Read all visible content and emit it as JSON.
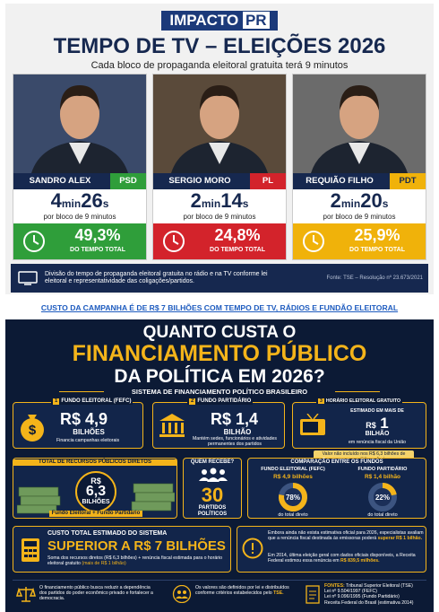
{
  "header": {
    "brand": "IMPACTO",
    "brand_suffix": "PR",
    "title": "TEMPO DE TV – ELEIÇÕES 2026",
    "subtitle": "Cada bloco de propaganda eleitoral gratuita terá 9 minutos"
  },
  "candidates": [
    {
      "name": "SANDRO ALEX",
      "party": "PSD",
      "minutes": "4",
      "min_unit": "min",
      "seconds": "26",
      "sec_unit": "s",
      "per_block": "por bloco de 9 minutos",
      "share": "49,3%",
      "share_caption": "DO TEMPO TOTAL",
      "color": "#2f9e3a"
    },
    {
      "name": "SERGIO MORO",
      "party": "PL",
      "minutes": "2",
      "min_unit": "min",
      "seconds": "14",
      "sec_unit": "s",
      "per_block": "por bloco de 9 minutos",
      "share": "24,8%",
      "share_caption": "DO TEMPO TOTAL",
      "color": "#d3232b"
    },
    {
      "name": "REQUIÃO FILHO",
      "party": "PDT",
      "minutes": "2",
      "min_unit": "min",
      "seconds": "20",
      "sec_unit": "s",
      "per_block": "por bloco de 9 minutos",
      "share": "25,9%",
      "share_caption": "DO TEMPO TOTAL",
      "color": "#f0b20a"
    }
  ],
  "footer": {
    "note": "Divisão do tempo de propaganda eleitoral gratuita no rádio e na TV conforme lei eleitoral e representatividade das coligações/partidos.",
    "source": "Fonte: TSE – Resolução nº 23.673/2021"
  },
  "link": "CUSTO DA CAMPANHA É DE R$ 7 BILHÕES COM TEMPO DE TV, RÁDIOS E FUNDÃO ELEITORAL",
  "financing": {
    "title": [
      "QUANTO CUSTA O",
      "FINANCIAMENTO PÚBLICO",
      "DA POLÍTICA EM 2026?"
    ],
    "subtitle": "SISTEMA DE FINANCIAMENTO POLÍTICO BRASILEIRO",
    "funds": [
      {
        "number": "1",
        "name": "FUNDO ELEITORAL (FEFC)",
        "amount": "R$ 4,9",
        "unit": "BILHÕES",
        "desc": "Financia campanhas eleitorais"
      },
      {
        "number": "2",
        "name": "FUNDO PARTIDÁRIO",
        "amount": "R$ 1,4",
        "unit": "BILHÃO",
        "desc": "Mantém sedes, funcionários e atividades permanentes dos partidos"
      },
      {
        "number": "3",
        "name": "HORÁRIO ELEITORAL GRATUITO",
        "pre": "ESTIMADO EM MAIS DE",
        "currency": "R$",
        "amount": "1",
        "unit": "BILHÃO",
        "desc": "em renúncia fiscal da União",
        "note": "Valor não incluído nos R$ 6,3 bilhões de recursos públicos diretos"
      }
    ],
    "total": {
      "title": "TOTAL DE RECURSOS PÚBLICOS DIRETOS",
      "currency": "R$",
      "amount": "6,3",
      "unit": "BILHÕES",
      "caption": "Fundo Eleitoral + Fundo Partidário"
    },
    "recipients": {
      "title": "QUEM RECEBE?",
      "count": "30",
      "label": "PARTIDOS POLÍTICOS"
    },
    "comparison": {
      "title": "COMPARAÇÃO ENTRE OS FUNDOS",
      "items": [
        {
          "name": "FUNDO ELEITORAL (FEFC)",
          "amount": "R$ 4,9 bilhões",
          "value": 78,
          "label": "78%",
          "caption": "do total direto"
        },
        {
          "name": "FUNDO PARTIDÁRIO",
          "amount": "R$ 1,4 bilhão",
          "value": 22,
          "label": "22%",
          "caption": "do total direto"
        }
      ]
    },
    "system_cost": {
      "title": "CUSTO TOTAL ESTIMADO DO SISTEMA",
      "headline": "SUPERIOR A R$ 7 BILHÕES",
      "desc": "Soma dos recursos diretos (R$ 6,3 bilhões) + renúncia fiscal estimada para o horário eleitoral gratuito",
      "desc_highlight": "(mais de R$ 1 bilhão)"
    },
    "estimate_note": {
      "text1": "Embora ainda não exista estimativa oficial para 2026, especialistas avaliam que a renúncia fiscal destinada às emissoras poderá",
      "highlight1": "superar R$ 1 bilhão.",
      "text2": "Em 2014, última eleição geral com dados oficiais disponíveis, a Receita Federal estimou essa renúncia em",
      "highlight2": "R$ 839,5 milhões."
    },
    "bottom": {
      "purpose": "O financiamento público busca reduzir a dependência dos partidos do poder econômico privado e fortalecer a democracia.",
      "rules": "Os valores são definidos por lei e distribuídos conforme critérios estabelecidos pelo",
      "rules_highlight": "TSE.",
      "sources_label": "FONTES:",
      "sources": [
        "Tribunal Superior Eleitoral (TSE)",
        "Lei nº 9.504/1997 (FEFC)",
        "Lei nº 9.096/1995 (Fundo Partidário)",
        "Receita Federal do Brasil (estimativa 2014)"
      ]
    }
  }
}
